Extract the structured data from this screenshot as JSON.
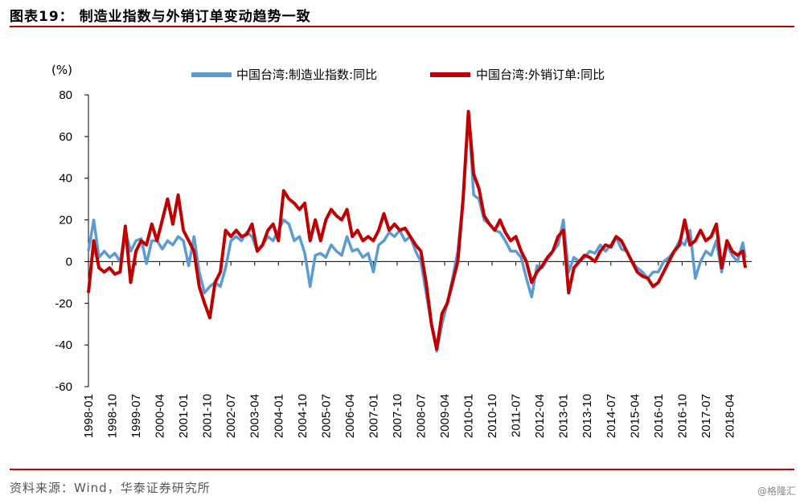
{
  "figure": {
    "title": "图表19：  制造业指数与外销订单变动趋势一致",
    "source": "资料来源：Wind，华泰证券研究所",
    "watermark": "@格隆汇"
  },
  "chart_data": {
    "type": "line",
    "yunit": "(%)",
    "ylim": [
      -60,
      80
    ],
    "yticks": [
      80,
      60,
      40,
      20,
      0,
      -20,
      -40,
      -60
    ],
    "xticks": [
      "1998-01",
      "1998-10",
      "1999-07",
      "2000-04",
      "2001-01",
      "2001-10",
      "2002-07",
      "2003-04",
      "2004-01",
      "2004-10",
      "2005-07",
      "2006-04",
      "2007-01",
      "2007-10",
      "2008-07",
      "2009-04",
      "2010-01",
      "2010-10",
      "2011-07",
      "2012-04",
      "2013-01",
      "2013-10",
      "2014-07",
      "2015-04",
      "2016-01",
      "2016-10",
      "2017-07",
      "2018-04"
    ],
    "legend_position": "top",
    "series": [
      {
        "name": "中国台湾:制造业指数:同比",
        "color": "#5b9bd5",
        "points": [
          [
            "1998-01",
            5
          ],
          [
            "1998-03",
            20
          ],
          [
            "1998-05",
            2
          ],
          [
            "1998-07",
            5
          ],
          [
            "1998-09",
            2
          ],
          [
            "1998-11",
            4
          ],
          [
            "1999-01",
            0
          ],
          [
            "1999-03",
            15
          ],
          [
            "1999-05",
            5
          ],
          [
            "1999-07",
            10
          ],
          [
            "1999-09",
            11
          ],
          [
            "1999-11",
            -1
          ],
          [
            "2000-01",
            10
          ],
          [
            "2000-03",
            10
          ],
          [
            "2000-05",
            6
          ],
          [
            "2000-07",
            10
          ],
          [
            "2000-09",
            8
          ],
          [
            "2000-11",
            12
          ],
          [
            "2001-01",
            10
          ],
          [
            "2001-03",
            -2
          ],
          [
            "2001-05",
            12
          ],
          [
            "2001-07",
            -5
          ],
          [
            "2001-09",
            -15
          ],
          [
            "2001-11",
            -12
          ],
          [
            "2002-01",
            -10
          ],
          [
            "2002-03",
            -12
          ],
          [
            "2002-05",
            -3
          ],
          [
            "2002-07",
            10
          ],
          [
            "2002-09",
            12
          ],
          [
            "2002-11",
            10
          ],
          [
            "2003-01",
            14
          ],
          [
            "2003-03",
            12
          ],
          [
            "2003-05",
            5
          ],
          [
            "2003-07",
            8
          ],
          [
            "2003-09",
            12
          ],
          [
            "2003-11",
            10
          ],
          [
            "2004-01",
            15
          ],
          [
            "2004-03",
            20
          ],
          [
            "2004-05",
            18
          ],
          [
            "2004-07",
            10
          ],
          [
            "2004-09",
            12
          ],
          [
            "2004-11",
            4
          ],
          [
            "2005-01",
            -12
          ],
          [
            "2005-03",
            3
          ],
          [
            "2005-05",
            4
          ],
          [
            "2005-07",
            2
          ],
          [
            "2005-09",
            8
          ],
          [
            "2005-11",
            5
          ],
          [
            "2006-01",
            3
          ],
          [
            "2006-03",
            12
          ],
          [
            "2006-05",
            5
          ],
          [
            "2006-07",
            6
          ],
          [
            "2006-09",
            2
          ],
          [
            "2006-11",
            4
          ],
          [
            "2007-01",
            -5
          ],
          [
            "2007-03",
            8
          ],
          [
            "2007-05",
            10
          ],
          [
            "2007-07",
            14
          ],
          [
            "2007-09",
            12
          ],
          [
            "2007-11",
            15
          ],
          [
            "2008-01",
            10
          ],
          [
            "2008-03",
            12
          ],
          [
            "2008-05",
            5
          ],
          [
            "2008-07",
            0
          ],
          [
            "2008-09",
            -15
          ],
          [
            "2008-11",
            -30
          ],
          [
            "2009-01",
            -43
          ],
          [
            "2009-03",
            -30
          ],
          [
            "2009-05",
            -20
          ],
          [
            "2009-07",
            -8
          ],
          [
            "2009-09",
            5
          ],
          [
            "2009-11",
            30
          ],
          [
            "2010-01",
            72
          ],
          [
            "2010-03",
            32
          ],
          [
            "2010-05",
            30
          ],
          [
            "2010-07",
            20
          ],
          [
            "2010-09",
            18
          ],
          [
            "2010-11",
            15
          ],
          [
            "2011-01",
            14
          ],
          [
            "2011-03",
            10
          ],
          [
            "2011-05",
            5
          ],
          [
            "2011-07",
            5
          ],
          [
            "2011-09",
            2
          ],
          [
            "2011-11",
            -8
          ],
          [
            "2012-01",
            -17
          ],
          [
            "2012-03",
            -2
          ],
          [
            "2012-05",
            -3
          ],
          [
            "2012-07",
            1
          ],
          [
            "2012-09",
            5
          ],
          [
            "2012-11",
            8
          ],
          [
            "2013-01",
            20
          ],
          [
            "2013-03",
            -5
          ],
          [
            "2013-05",
            2
          ],
          [
            "2013-07",
            0
          ],
          [
            "2013-09",
            2
          ],
          [
            "2013-11",
            5
          ],
          [
            "2014-01",
            4
          ],
          [
            "2014-03",
            8
          ],
          [
            "2014-05",
            5
          ],
          [
            "2014-07",
            8
          ],
          [
            "2014-09",
            12
          ],
          [
            "2014-11",
            6
          ],
          [
            "2015-01",
            5
          ],
          [
            "2015-03",
            0
          ],
          [
            "2015-05",
            -3
          ],
          [
            "2015-07",
            -5
          ],
          [
            "2015-09",
            -8
          ],
          [
            "2015-11",
            -5
          ],
          [
            "2016-01",
            -5
          ],
          [
            "2016-03",
            0
          ],
          [
            "2016-05",
            2
          ],
          [
            "2016-07",
            5
          ],
          [
            "2016-09",
            10
          ],
          [
            "2016-11",
            8
          ],
          [
            "2017-01",
            15
          ],
          [
            "2017-03",
            -8
          ],
          [
            "2017-05",
            0
          ],
          [
            "2017-07",
            5
          ],
          [
            "2017-09",
            3
          ],
          [
            "2017-11",
            10
          ],
          [
            "2018-01",
            -5
          ],
          [
            "2018-03",
            8
          ],
          [
            "2018-05",
            3
          ],
          [
            "2018-07",
            0
          ],
          [
            "2018-09",
            9
          ],
          [
            "2018-10",
            2
          ]
        ]
      },
      {
        "name": "中国台湾:外销订单:同比",
        "color": "#c00000",
        "points": [
          [
            "1998-01",
            -15
          ],
          [
            "1998-03",
            10
          ],
          [
            "1998-05",
            -3
          ],
          [
            "1998-07",
            -5
          ],
          [
            "1998-09",
            -3
          ],
          [
            "1998-11",
            -6
          ],
          [
            "1999-01",
            -5
          ],
          [
            "1999-03",
            17
          ],
          [
            "1999-05",
            -10
          ],
          [
            "1999-07",
            5
          ],
          [
            "1999-09",
            10
          ],
          [
            "1999-11",
            8
          ],
          [
            "2000-01",
            18
          ],
          [
            "2000-03",
            10
          ],
          [
            "2000-05",
            20
          ],
          [
            "2000-07",
            30
          ],
          [
            "2000-09",
            18
          ],
          [
            "2000-11",
            32
          ],
          [
            "2001-01",
            15
          ],
          [
            "2001-03",
            10
          ],
          [
            "2001-05",
            5
          ],
          [
            "2001-07",
            -12
          ],
          [
            "2001-09",
            -20
          ],
          [
            "2001-11",
            -27
          ],
          [
            "2002-01",
            -10
          ],
          [
            "2002-03",
            -5
          ],
          [
            "2002-05",
            15
          ],
          [
            "2002-07",
            12
          ],
          [
            "2002-09",
            15
          ],
          [
            "2002-11",
            12
          ],
          [
            "2003-01",
            13
          ],
          [
            "2003-03",
            18
          ],
          [
            "2003-05",
            5
          ],
          [
            "2003-07",
            8
          ],
          [
            "2003-09",
            15
          ],
          [
            "2003-11",
            18
          ],
          [
            "2004-01",
            10
          ],
          [
            "2004-03",
            34
          ],
          [
            "2004-05",
            30
          ],
          [
            "2004-07",
            28
          ],
          [
            "2004-09",
            25
          ],
          [
            "2004-11",
            28
          ],
          [
            "2005-01",
            10
          ],
          [
            "2005-03",
            20
          ],
          [
            "2005-05",
            10
          ],
          [
            "2005-07",
            20
          ],
          [
            "2005-09",
            25
          ],
          [
            "2005-11",
            22
          ],
          [
            "2006-01",
            20
          ],
          [
            "2006-03",
            25
          ],
          [
            "2006-05",
            12
          ],
          [
            "2006-07",
            15
          ],
          [
            "2006-09",
            10
          ],
          [
            "2006-11",
            12
          ],
          [
            "2007-01",
            10
          ],
          [
            "2007-03",
            15
          ],
          [
            "2007-05",
            23
          ],
          [
            "2007-07",
            15
          ],
          [
            "2007-09",
            18
          ],
          [
            "2007-11",
            15
          ],
          [
            "2008-01",
            16
          ],
          [
            "2008-03",
            12
          ],
          [
            "2008-05",
            8
          ],
          [
            "2008-07",
            5
          ],
          [
            "2008-09",
            -10
          ],
          [
            "2008-11",
            -30
          ],
          [
            "2009-01",
            -42
          ],
          [
            "2009-03",
            -25
          ],
          [
            "2009-05",
            -20
          ],
          [
            "2009-07",
            -10
          ],
          [
            "2009-09",
            0
          ],
          [
            "2009-11",
            30
          ],
          [
            "2010-01",
            72
          ],
          [
            "2010-03",
            42
          ],
          [
            "2010-05",
            35
          ],
          [
            "2010-07",
            22
          ],
          [
            "2010-09",
            18
          ],
          [
            "2010-11",
            15
          ],
          [
            "2011-01",
            20
          ],
          [
            "2011-03",
            14
          ],
          [
            "2011-05",
            10
          ],
          [
            "2011-07",
            12
          ],
          [
            "2011-09",
            5
          ],
          [
            "2011-11",
            0
          ],
          [
            "2012-01",
            -10
          ],
          [
            "2012-03",
            -5
          ],
          [
            "2012-05",
            -2
          ],
          [
            "2012-07",
            2
          ],
          [
            "2012-09",
            5
          ],
          [
            "2012-11",
            12
          ],
          [
            "2013-01",
            15
          ],
          [
            "2013-03",
            -15
          ],
          [
            "2013-05",
            -3
          ],
          [
            "2013-07",
            0
          ],
          [
            "2013-09",
            3
          ],
          [
            "2013-11",
            2
          ],
          [
            "2014-01",
            0
          ],
          [
            "2014-03",
            5
          ],
          [
            "2014-05",
            8
          ],
          [
            "2014-07",
            7
          ],
          [
            "2014-09",
            12
          ],
          [
            "2014-11",
            10
          ],
          [
            "2015-01",
            5
          ],
          [
            "2015-03",
            0
          ],
          [
            "2015-05",
            -5
          ],
          [
            "2015-07",
            -7
          ],
          [
            "2015-09",
            -8
          ],
          [
            "2015-11",
            -12
          ],
          [
            "2016-01",
            -10
          ],
          [
            "2016-03",
            -5
          ],
          [
            "2016-05",
            0
          ],
          [
            "2016-07",
            5
          ],
          [
            "2016-09",
            8
          ],
          [
            "2016-11",
            20
          ],
          [
            "2017-01",
            8
          ],
          [
            "2017-03",
            10
          ],
          [
            "2017-05",
            15
          ],
          [
            "2017-07",
            10
          ],
          [
            "2017-09",
            12
          ],
          [
            "2017-11",
            18
          ],
          [
            "2018-01",
            -3
          ],
          [
            "2018-03",
            10
          ],
          [
            "2018-05",
            5
          ],
          [
            "2018-07",
            3
          ],
          [
            "2018-09",
            5
          ],
          [
            "2018-10",
            -3
          ]
        ]
      }
    ]
  }
}
